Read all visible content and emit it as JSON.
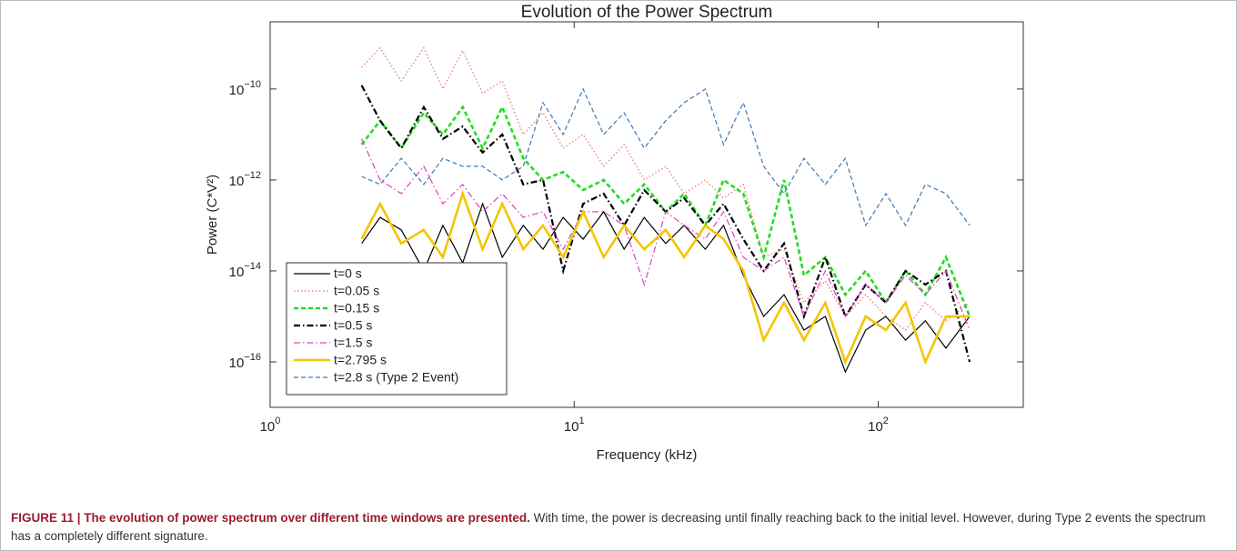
{
  "chart_data": {
    "type": "line",
    "title": "Evolution of the Power Spectrum",
    "xlabel": "Frequency (kHz)",
    "ylabel": "Power (C*V²)",
    "xscale": "log",
    "yscale": "log",
    "xlim": [
      1,
      300
    ],
    "ylim": [
      1e-17,
      3e-09
    ],
    "xticks": [
      {
        "value": 1,
        "base": "10",
        "exponent": "0"
      },
      {
        "value": 10,
        "base": "10",
        "exponent": "1"
      },
      {
        "value": 100,
        "base": "10",
        "exponent": "2"
      }
    ],
    "yticks": [
      {
        "value": 1e-16,
        "base": "10",
        "exponent": "−16"
      },
      {
        "value": 1e-14,
        "base": "10",
        "exponent": "−14"
      },
      {
        "value": 1e-12,
        "base": "10",
        "exponent": "−12"
      },
      {
        "value": 1e-10,
        "base": "10",
        "exponent": "−10"
      }
    ],
    "legend": "lower left",
    "x": [
      2,
      2.3,
      2.7,
      3.2,
      3.7,
      4.3,
      5,
      5.8,
      6.8,
      7.9,
      9.2,
      10.7,
      12.5,
      14.6,
      17,
      20,
      23,
      27,
      31,
      36,
      42,
      49,
      57,
      67,
      78,
      91,
      106,
      123,
      143,
      167,
      200
    ],
    "series": [
      {
        "name": "t=0 s",
        "color": "#000000",
        "style": "solid",
        "linewidth": 1.2,
        "values": [
          4e-14,
          1.5e-13,
          8e-14,
          1e-14,
          1e-13,
          1.5e-14,
          3e-13,
          2e-14,
          1e-13,
          3e-14,
          1.5e-13,
          5e-14,
          2e-13,
          3e-14,
          1.5e-13,
          4e-14,
          1e-13,
          3e-14,
          1e-13,
          8e-15,
          1e-15,
          3e-15,
          5e-16,
          1e-15,
          6e-17,
          5e-16,
          1e-15,
          3e-16,
          8e-16,
          2e-16,
          1e-15
        ]
      },
      {
        "name": "t=0.05 s",
        "color": "#e8837c",
        "style": "dotted",
        "linewidth": 1.4,
        "values": [
          3e-10,
          8e-10,
          1.5e-10,
          8e-10,
          1e-10,
          7e-10,
          8e-11,
          1.5e-10,
          1e-11,
          3e-11,
          5e-12,
          1e-11,
          2e-12,
          6e-12,
          1e-12,
          2e-12,
          5e-13,
          1e-12,
          4e-13,
          8e-13,
          2e-14,
          3e-14,
          2e-15,
          6e-15,
          1e-15,
          3e-15,
          1e-15,
          5e-16,
          2e-15,
          8e-16,
          2e-15
        ]
      },
      {
        "name": "t=0.15 s",
        "color": "#22dd22",
        "style": "dashed",
        "linewidth": 2.6,
        "values": [
          6e-12,
          2e-11,
          5e-12,
          3e-11,
          1e-11,
          4e-11,
          5e-12,
          4e-11,
          3e-12,
          1e-12,
          1.5e-12,
          6e-13,
          1e-12,
          3e-13,
          8e-13,
          2e-13,
          5e-13,
          1e-13,
          1e-12,
          5e-13,
          2e-14,
          1e-12,
          8e-15,
          2e-14,
          3e-15,
          1e-14,
          2e-15,
          1e-14,
          3e-15,
          2e-14,
          1e-15
        ]
      },
      {
        "name": "t=0.5 s",
        "color": "#000000",
        "style": "dashdot",
        "linewidth": 2.2,
        "values": [
          1.2e-10,
          2e-11,
          5e-12,
          4e-11,
          8e-12,
          1.5e-11,
          4e-12,
          1e-11,
          8e-13,
          1e-12,
          1e-14,
          3e-13,
          5e-13,
          1e-13,
          6e-13,
          2e-13,
          4e-13,
          1e-13,
          3e-13,
          5e-14,
          1e-14,
          4e-14,
          1e-15,
          2e-14,
          1e-15,
          5e-15,
          2e-15,
          1e-14,
          5e-15,
          1e-14,
          1e-16
        ]
      },
      {
        "name": "t=1.5 s",
        "color": "#e040c0",
        "style": "dashdot",
        "linewidth": 1.2,
        "values": [
          8e-12,
          1e-12,
          5e-13,
          2e-12,
          3e-13,
          8e-13,
          2e-13,
          5e-13,
          1.5e-13,
          2e-13,
          3e-14,
          2e-13,
          2e-13,
          1e-13,
          5e-15,
          2e-13,
          1e-13,
          5e-14,
          2e-13,
          2e-14,
          1e-14,
          2e-14,
          1e-15,
          1e-14,
          1e-15,
          5e-15,
          2e-15,
          8e-15,
          3e-15,
          1e-14,
          5e-16
        ]
      },
      {
        "name": "t=2.795 s",
        "color": "#f5c400",
        "style": "solid",
        "linewidth": 2.6,
        "values": [
          5e-14,
          3e-13,
          4e-14,
          8e-14,
          2e-14,
          5e-13,
          3e-14,
          3e-13,
          3e-14,
          1e-13,
          2e-14,
          2e-13,
          2e-14,
          1e-13,
          3e-14,
          8e-14,
          2e-14,
          1e-13,
          5e-14,
          1e-14,
          3e-16,
          2e-15,
          3e-16,
          2e-15,
          1e-16,
          1e-15,
          5e-16,
          2e-15,
          1e-16,
          1e-15,
          1e-15
        ]
      },
      {
        "name": "t=2.8 s (Type 2 Event)",
        "color": "#3a78b5",
        "style": "dashed",
        "linewidth": 1.2,
        "values": [
          1.2e-12,
          8e-13,
          3e-12,
          8e-13,
          3e-12,
          2e-12,
          2e-12,
          1e-12,
          2e-12,
          5e-11,
          1e-11,
          1e-10,
          1e-11,
          3e-11,
          5e-12,
          2e-11,
          5e-11,
          1e-10,
          6e-12,
          5e-11,
          2e-12,
          5e-13,
          3e-12,
          8e-13,
          3e-12,
          1e-13,
          5e-13,
          1e-13,
          8e-13,
          5e-13,
          1e-13
        ]
      }
    ]
  },
  "caption": {
    "label": "FIGURE 11 | The evolution of power spectrum over different time windows are presented.",
    "text": "With time, the power is decreasing until finally reaching back to the initial level. However, during Type 2 events the spectrum has a completely different signature."
  }
}
